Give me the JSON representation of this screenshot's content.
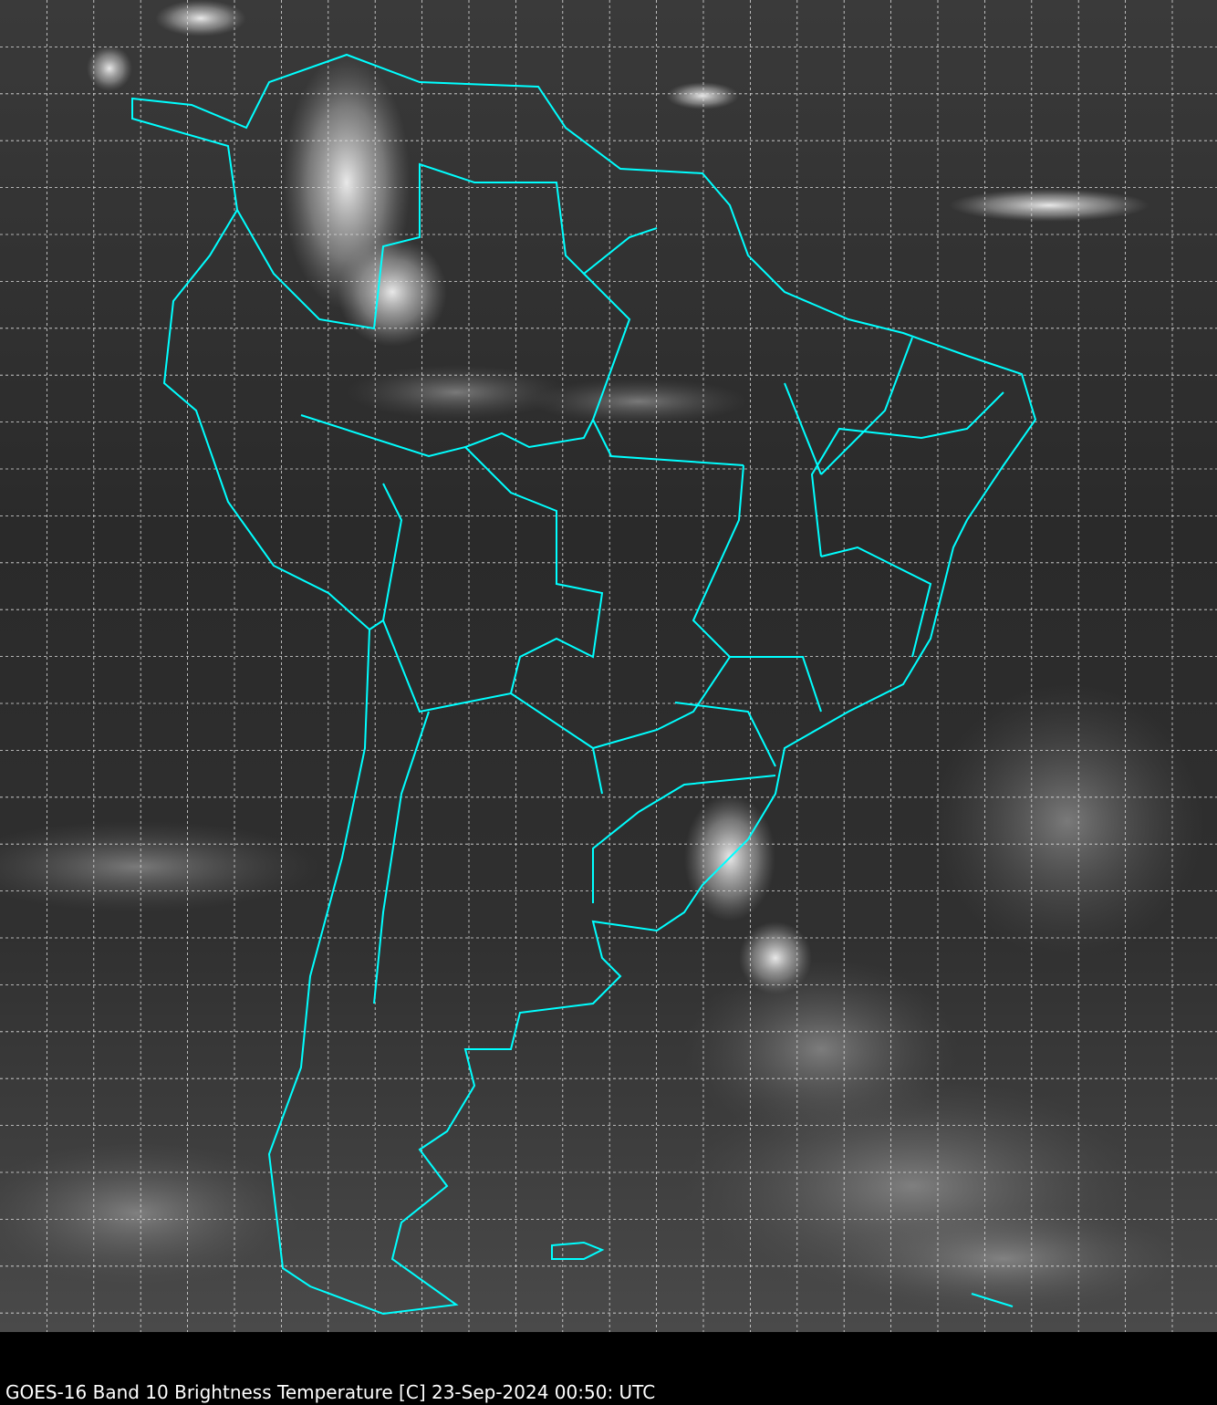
{
  "caption": "GOES-16 Band 10  Brightness Temperature [C] 23-Sep-2024 00:50: UTC",
  "map": {
    "satellite": "GOES-16",
    "band": "Band 10",
    "variable": "Brightness Temperature [C]",
    "colormap": "grayscale",
    "region": "South America",
    "graticule": true,
    "colors": {
      "borders": "#00ffff",
      "grid": "#ffffff",
      "background": "#000000"
    }
  }
}
